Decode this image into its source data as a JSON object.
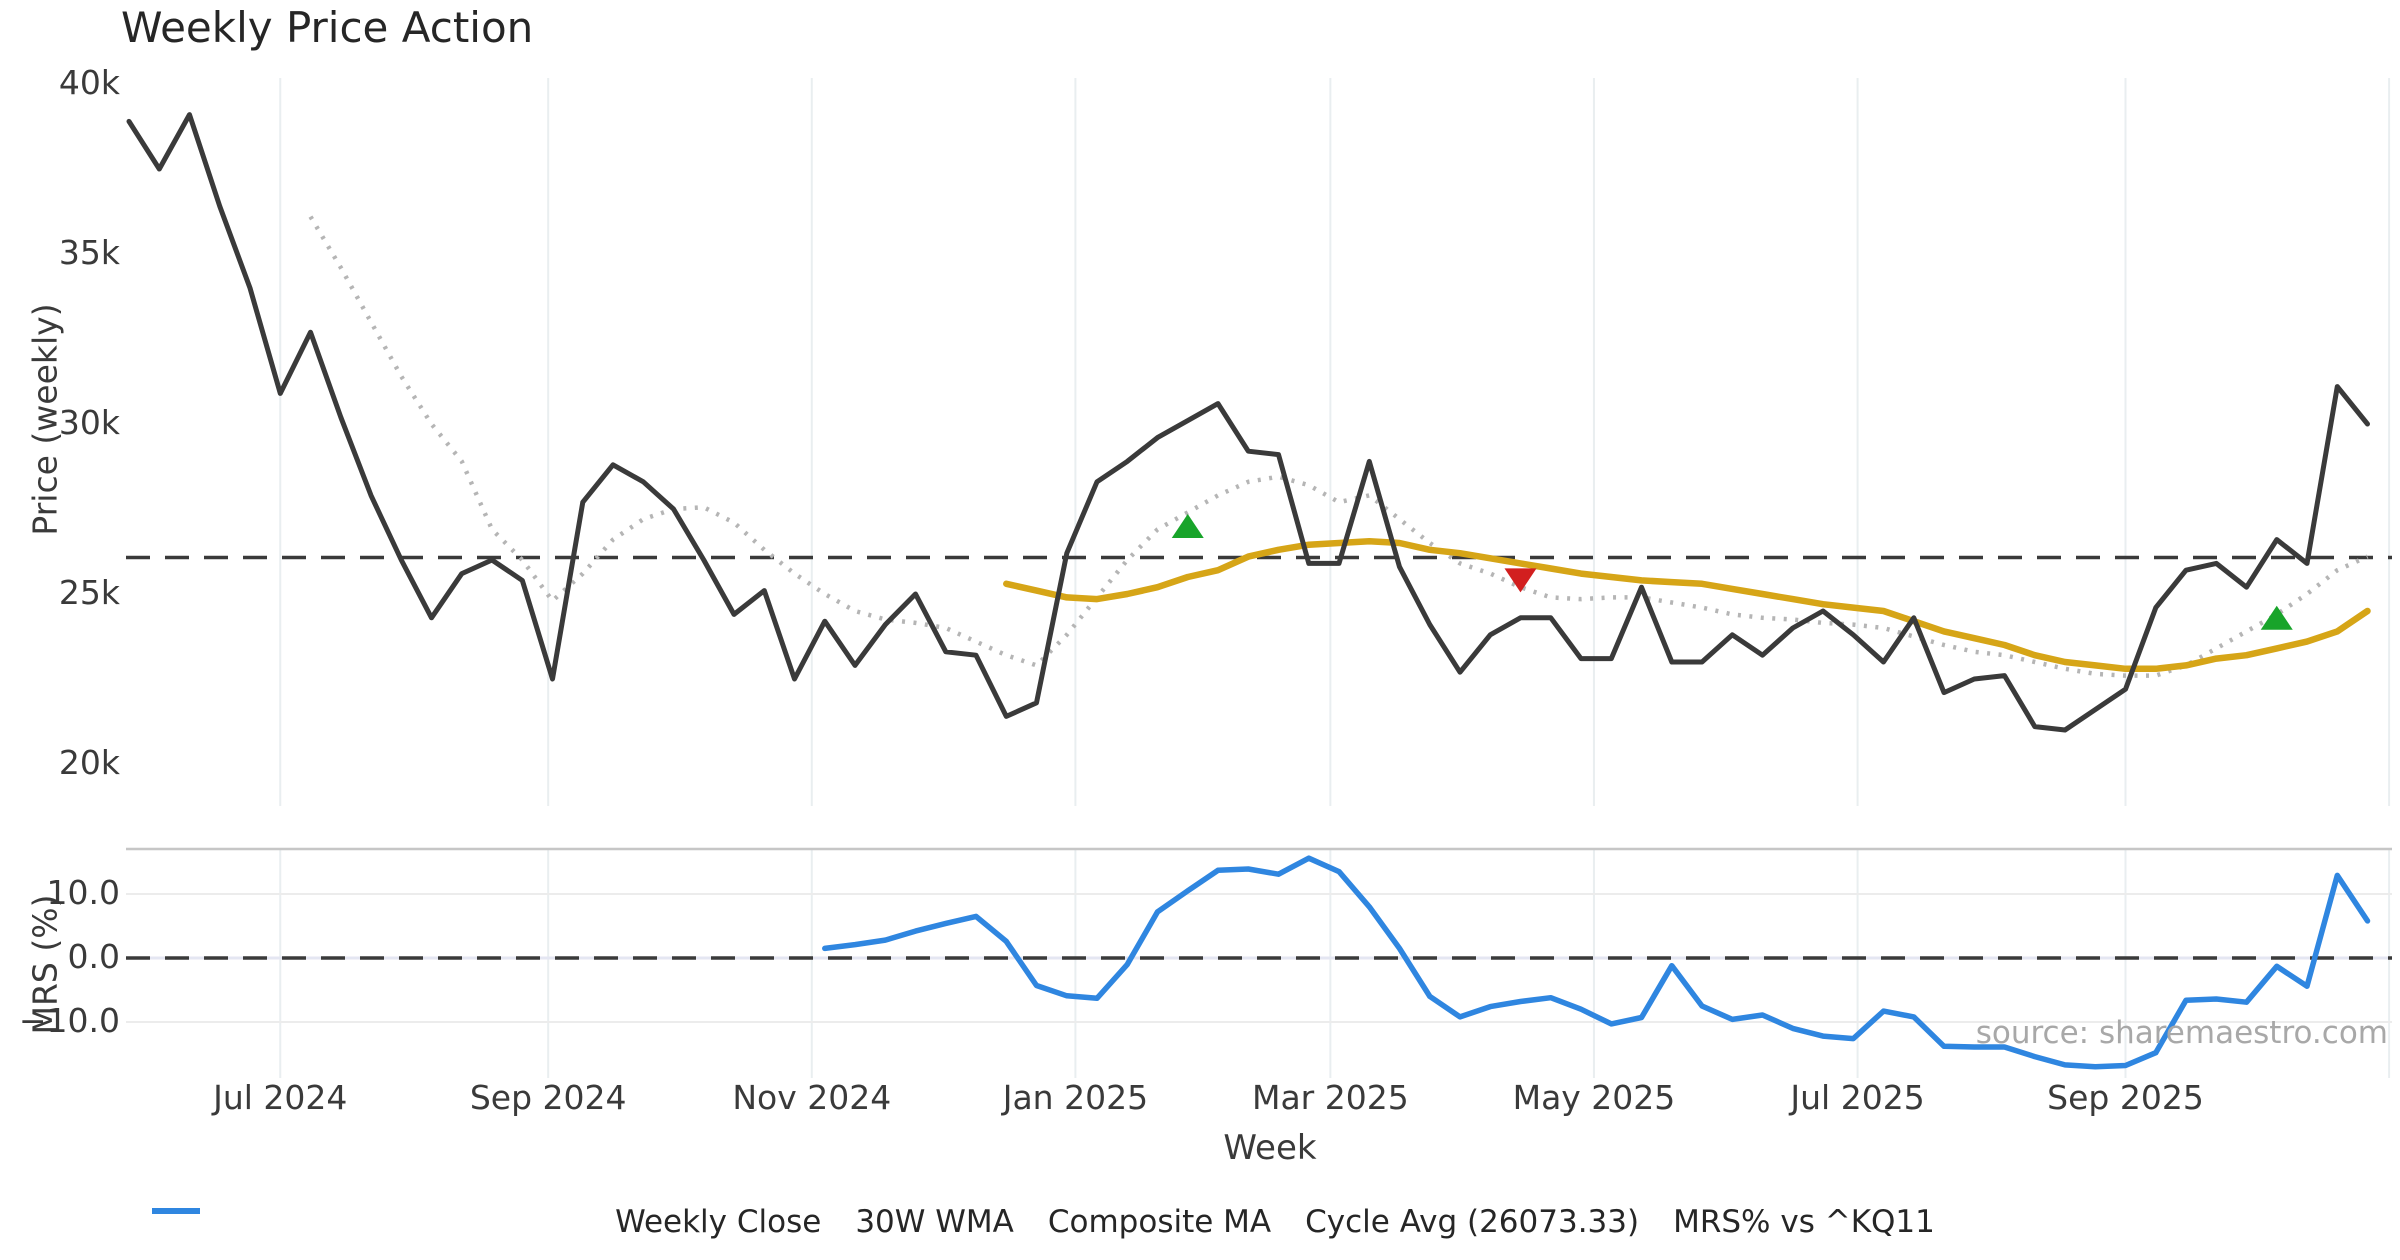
{
  "title": "Weekly Price Action",
  "source_note": "source: sharemaestro.com",
  "colors": {
    "close": "#3a3a3a",
    "wma": "#d6a517",
    "composite": "#b5b5b5",
    "cycle_avg": "#3a3a3a",
    "mrs": "#2f86e0",
    "marker_up": "#18a42a",
    "marker_down": "#d21f1f",
    "grid_vertical": "#e9eef0",
    "grid_horizontal": "#ececec",
    "panel_border": "#c6c6c6"
  },
  "legend": [
    {
      "label": "Weekly Close",
      "style": "solid",
      "color": "#3a3a3a"
    },
    {
      "label": "30W WMA",
      "style": "solid",
      "color": "#d6a517"
    },
    {
      "label": "Composite MA",
      "style": "dotted",
      "color": "#b5b5b5"
    },
    {
      "label": "Cycle Avg (26073.33)",
      "style": "dashed",
      "color": "#3a3a3a"
    },
    {
      "label": "MRS% vs ^KQ11",
      "style": "solid",
      "color": "#2f86e0"
    }
  ],
  "chart_data": [
    {
      "type": "line",
      "panel": "price",
      "ylabel": "Price (weekly)",
      "xlabel": "Week",
      "ylim": [
        18800,
        40200
      ],
      "grid": "vertical-only",
      "yticks": [
        {
          "value": 20000,
          "label": "20k"
        },
        {
          "value": 25000,
          "label": "25k"
        },
        {
          "value": 30000,
          "label": "30k"
        },
        {
          "value": 35000,
          "label": "35k"
        },
        {
          "value": 40000,
          "label": "40k"
        }
      ],
      "xticks": [
        {
          "date": "2024-07-01",
          "label": "Jul 2024"
        },
        {
          "date": "2024-09-01",
          "label": "Sep 2024"
        },
        {
          "date": "2024-11-01",
          "label": "Nov 2024"
        },
        {
          "date": "2025-01-01",
          "label": "Jan 2025"
        },
        {
          "date": "2025-03-01",
          "label": "Mar 2025"
        },
        {
          "date": "2025-05-01",
          "label": "May 2025"
        },
        {
          "date": "2025-07-01",
          "label": "Jul 2025"
        },
        {
          "date": "2025-09-01",
          "label": "Sep 2025"
        },
        {
          "date": "2025-11-01",
          "label": ""
        }
      ],
      "x_dates": [
        "2024-05-27",
        "2024-06-03",
        "2024-06-10",
        "2024-06-17",
        "2024-06-24",
        "2024-07-01",
        "2024-07-08",
        "2024-07-15",
        "2024-07-22",
        "2024-07-29",
        "2024-08-05",
        "2024-08-12",
        "2024-08-19",
        "2024-08-26",
        "2024-09-02",
        "2024-09-09",
        "2024-09-16",
        "2024-09-23",
        "2024-09-30",
        "2024-10-07",
        "2024-10-14",
        "2024-10-21",
        "2024-10-28",
        "2024-11-04",
        "2024-11-11",
        "2024-11-18",
        "2024-11-25",
        "2024-12-02",
        "2024-12-09",
        "2024-12-16",
        "2024-12-23",
        "2024-12-30",
        "2025-01-06",
        "2025-01-13",
        "2025-01-20",
        "2025-01-27",
        "2025-02-03",
        "2025-02-10",
        "2025-02-17",
        "2025-02-24",
        "2025-03-03",
        "2025-03-10",
        "2025-03-17",
        "2025-03-24",
        "2025-03-31",
        "2025-04-07",
        "2025-04-14",
        "2025-04-21",
        "2025-04-28",
        "2025-05-05",
        "2025-05-12",
        "2025-05-19",
        "2025-05-26",
        "2025-06-02",
        "2025-06-09",
        "2025-06-16",
        "2025-06-23",
        "2025-06-30",
        "2025-07-07",
        "2025-07-14",
        "2025-07-21",
        "2025-07-28",
        "2025-08-04",
        "2025-08-11",
        "2025-08-18",
        "2025-08-25",
        "2025-09-01",
        "2025-09-08",
        "2025-09-15",
        "2025-09-22",
        "2025-09-29",
        "2025-10-06",
        "2025-10-13",
        "2025-10-20",
        "2025-10-27"
      ],
      "series": [
        {
          "name": "Weekly Close",
          "color": "#3a3a3a",
          "style": "solid",
          "width": 5,
          "start_week": 0,
          "values": [
            38900,
            37500,
            39100,
            36400,
            34000,
            30900,
            32700,
            30200,
            27900,
            26000,
            24300,
            25600,
            26000,
            25400,
            22500,
            27700,
            28800,
            28300,
            27500,
            26000,
            24400,
            25100,
            22500,
            24200,
            22900,
            24100,
            25000,
            23300,
            23200,
            21400,
            21800,
            26200,
            28300,
            28900,
            29600,
            30100,
            30600,
            29200,
            29100,
            25900,
            25900,
            28900,
            25800,
            24100,
            22700,
            23800,
            24300,
            24300,
            23100,
            23100,
            25200,
            23000,
            23000,
            23800,
            23200,
            24000,
            24500,
            23800,
            23000,
            24300,
            22100,
            22500,
            22600,
            21100,
            21000,
            21600,
            22200,
            24600,
            25700,
            25900,
            25200,
            26600,
            25900,
            31100,
            30000
          ]
        },
        {
          "name": "30W WMA",
          "color": "#d6a517",
          "style": "solid",
          "width": 6.5,
          "start_week": 29,
          "values": [
            25300,
            25100,
            24900,
            24850,
            25000,
            25200,
            25500,
            25700,
            26100,
            26300,
            26450,
            26500,
            26550,
            26500,
            26300,
            26200,
            26050,
            25900,
            25750,
            25600,
            25500,
            25400,
            25350,
            25300,
            25150,
            25000,
            24850,
            24700,
            24600,
            24500,
            24200,
            23900,
            23700,
            23500,
            23200,
            23000,
            22900,
            22800,
            22800,
            22900,
            23100,
            23200,
            23400,
            23600,
            23900,
            24500
          ]
        },
        {
          "name": "Composite MA",
          "color": "#b5b5b5",
          "style": "dotted",
          "width": 4.5,
          "start_week": 6,
          "values": [
            36100,
            34600,
            33000,
            31400,
            30000,
            28900,
            26900,
            26000,
            24800,
            25600,
            26600,
            27200,
            27500,
            27550,
            27100,
            26300,
            25600,
            25000,
            24500,
            24250,
            24150,
            24000,
            23600,
            23200,
            22900,
            23800,
            24900,
            26000,
            26900,
            27400,
            27900,
            28300,
            28450,
            28200,
            27700,
            27900,
            27200,
            26500,
            25900,
            25600,
            25200,
            24900,
            24850,
            24900,
            24900,
            24750,
            24600,
            24400,
            24300,
            24250,
            24150,
            24100,
            24000,
            23750,
            23500,
            23300,
            23200,
            23000,
            22800,
            22650,
            22600,
            22600,
            22900,
            23400,
            23900,
            24400,
            25000,
            25700,
            26100
          ]
        }
      ],
      "reference_lines": [
        {
          "name": "Cycle Avg",
          "value": 26073.33,
          "style": "dashed",
          "color": "#3a3a3a"
        }
      ],
      "markers": [
        {
          "date": "2025-01-27",
          "value": 27000,
          "shape": "triangle-up",
          "color": "#18a42a"
        },
        {
          "date": "2025-04-14",
          "value": 25400,
          "shape": "triangle-down",
          "color": "#d21f1f"
        },
        {
          "date": "2025-10-06",
          "value": 24300,
          "shape": "triangle-up",
          "color": "#18a42a"
        }
      ]
    },
    {
      "type": "line",
      "panel": "mrs",
      "ylabel": "MRS (%)",
      "ylim": [
        -18.8,
        17.0
      ],
      "yticks": [
        {
          "value": 10,
          "label": "10.0"
        },
        {
          "value": 0,
          "label": "0.0"
        },
        {
          "value": -10,
          "label": "−10.0"
        }
      ],
      "series": [
        {
          "name": "MRS% vs ^KQ11",
          "color": "#2f86e0",
          "style": "solid",
          "width": 5.5,
          "start_week": 23,
          "values": [
            1.5,
            2.1,
            2.8,
            4.2,
            5.4,
            6.5,
            2.6,
            -4.3,
            -5.9,
            -6.3,
            -1.0,
            7.2,
            10.5,
            13.7,
            13.9,
            13.1,
            15.6,
            13.5,
            8.0,
            1.5,
            -6.0,
            -9.2,
            -7.6,
            -6.8,
            -6.2,
            -8.0,
            -10.3,
            -9.3,
            -1.2,
            -7.5,
            -9.6,
            -8.9,
            -11.0,
            -12.2,
            -12.6,
            -8.3,
            -9.2,
            -13.8,
            -13.9,
            -13.9,
            -15.4,
            -16.7,
            -17.0,
            -16.8,
            -14.8,
            -6.6,
            -6.4,
            -6.9,
            -1.3,
            -4.4,
            12.9,
            5.8
          ]
        }
      ],
      "reference_lines": [
        {
          "name": "zero",
          "value": 0,
          "style": "dashed",
          "color": "#3a3a3a"
        }
      ]
    }
  ]
}
